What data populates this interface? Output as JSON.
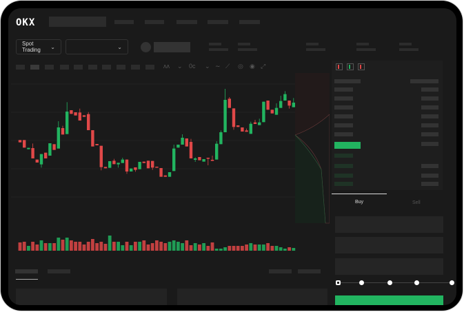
{
  "brand": {
    "logo": "OKX"
  },
  "header": {
    "market_dropdown": {
      "label": "Spot Trading",
      "icon": "chevron-down-icon"
    },
    "pair_dropdown": {
      "icon": "chevron-down-icon"
    }
  },
  "chart_toolbar": {
    "icons": [
      "indicator-icon",
      "chevron-down-icon",
      "fx-icon",
      "chevron-down-icon",
      "line-icon",
      "ruler-icon",
      "camera-icon",
      "settings-icon",
      "fullscreen-icon"
    ],
    "icon_glyphs": [
      "ʌʌ",
      "⌄",
      "0c",
      "⌄",
      "∼",
      "⟋",
      "◎",
      "◉",
      "⤢"
    ]
  },
  "orderbook": {
    "view_icons": [
      "orderbook-both-icon",
      "orderbook-buy-icon",
      "orderbook-sell-icon"
    ]
  },
  "trade_form": {
    "tabs": [
      {
        "label": "Buy",
        "active": true
      },
      {
        "label": "Sell",
        "active": false
      }
    ],
    "slider": {
      "value_percent": 0,
      "stops": [
        0,
        25,
        50,
        75,
        100
      ]
    }
  },
  "colors": {
    "up": "#22b460",
    "down": "#e04848",
    "background": "#1a1a1a",
    "buy_button": "#22b460"
  },
  "chart_data": {
    "type": "candlestick",
    "ohlc": [
      [
        75,
        75,
        74,
        74
      ],
      [
        75,
        75,
        71.7,
        71.7
      ],
      [
        71,
        71.6,
        71,
        71.6
      ],
      [
        71.5,
        73.5,
        67,
        67
      ],
      [
        66.5,
        66.5,
        65.2,
        65.2
      ],
      [
        64.4,
        68.9,
        63,
        68.9
      ],
      [
        69.5,
        69.5,
        67,
        67
      ],
      [
        68.2,
        73.6,
        68.2,
        73.6
      ],
      [
        73.2,
        73.2,
        70.7,
        70.7
      ],
      [
        71.3,
        83.2,
        71.3,
        80.5
      ],
      [
        80.2,
        81.2,
        77.4,
        77.4
      ],
      [
        77.6,
        91.5,
        77.6,
        87.4
      ],
      [
        88,
        88,
        86.4,
        86.4
      ],
      [
        87.1,
        87.1,
        85.7,
        85.7
      ],
      [
        87,
        88.7,
        83.5,
        83.5
      ],
      [
        85.8,
        85.8,
        85.1,
        85.1
      ],
      [
        86.3,
        87.2,
        79.3,
        79.3
      ],
      [
        79.3,
        79.3,
        72.2,
        72.2
      ],
      [
        73.3,
        73.3,
        72.7,
        72.7
      ],
      [
        72.5,
        72.5,
        61.8,
        63.2
      ],
      [
        63.3,
        63.3,
        62.7,
        62.7
      ],
      [
        62.9,
        65.8,
        62.9,
        65.8
      ],
      [
        66,
        66.8,
        64.5,
        64.5
      ],
      [
        64.4,
        65.1,
        63,
        65.1
      ],
      [
        65,
        67.3,
        65,
        66.5
      ],
      [
        66.5,
        66.5,
        60.3,
        61.3
      ],
      [
        61.3,
        62.6,
        61.3,
        62.6
      ],
      [
        63.1,
        63.1,
        61.2,
        62
      ],
      [
        62.3,
        65.5,
        62.3,
        65.5
      ],
      [
        65.6,
        65.6,
        65,
        65
      ],
      [
        66,
        66,
        62.7,
        62.7
      ],
      [
        65.9,
        65.9,
        62,
        63
      ],
      [
        63.4,
        63.4,
        63,
        63
      ],
      [
        62.8,
        62.8,
        59,
        59
      ],
      [
        59.6,
        59.6,
        59,
        59
      ],
      [
        59,
        61,
        59,
        61
      ],
      [
        61.5,
        73,
        61.5,
        71.3
      ],
      [
        71.7,
        73,
        71.7,
        73
      ],
      [
        73,
        77.5,
        73,
        76
      ],
      [
        75.7,
        75.7,
        72.2,
        72.2
      ],
      [
        74.2,
        75.5,
        67,
        67
      ],
      [
        66.4,
        67.5,
        65.5,
        67
      ],
      [
        67.6,
        67.6,
        66.2,
        66.2
      ],
      [
        65.6,
        66.7,
        65.6,
        66.7
      ],
      [
        67.3,
        67.3,
        64,
        67
      ],
      [
        66.4,
        68.2,
        65.9,
        65.9
      ],
      [
        66.5,
        74.5,
        66.5,
        73.4
      ],
      [
        73.2,
        79.2,
        73.2,
        78.4
      ],
      [
        78.4,
        97.3,
        78.4,
        92.5
      ],
      [
        93,
        93.7,
        89,
        89
      ],
      [
        88.8,
        88.8,
        79.5,
        80.7
      ],
      [
        81.4,
        81.4,
        80.7,
        80.7
      ],
      [
        80.5,
        80.5,
        78.7,
        78.7
      ],
      [
        79.2,
        80,
        78.6,
        78.6
      ],
      [
        77.7,
        83,
        77.7,
        82.1
      ],
      [
        82.7,
        83.8,
        82,
        82
      ],
      [
        81.5,
        84.3,
        81.5,
        82.7
      ],
      [
        82.8,
        91.7,
        82.8,
        91.7
      ],
      [
        92.2,
        92.2,
        88.2,
        88.2
      ],
      [
        88.2,
        88.2,
        86.6,
        86.6
      ],
      [
        86,
        91,
        86,
        89
      ],
      [
        89,
        94.3,
        89,
        92
      ],
      [
        92.2,
        96.3,
        92.2,
        95
      ],
      [
        92.2,
        92.2,
        88.7,
        90
      ],
      [
        89.3,
        93.3,
        89.3,
        91.3
      ]
    ],
    "volume": [
      12,
      13,
      7,
      13,
      9,
      15,
      11,
      11,
      11,
      19,
      16,
      19,
      15,
      13,
      13,
      9,
      13,
      17,
      11,
      13,
      10,
      22,
      13,
      13,
      8,
      13,
      8,
      13,
      13,
      15,
      9,
      11,
      15,
      13,
      11,
      13,
      15,
      13,
      11,
      15,
      8,
      11,
      9,
      11,
      7,
      12,
      3,
      3,
      5,
      7,
      7,
      7,
      7,
      9,
      11,
      9,
      9,
      9,
      11,
      7,
      7,
      5,
      3,
      5,
      4
    ],
    "price_range": [
      57,
      99
    ],
    "grid": true
  }
}
